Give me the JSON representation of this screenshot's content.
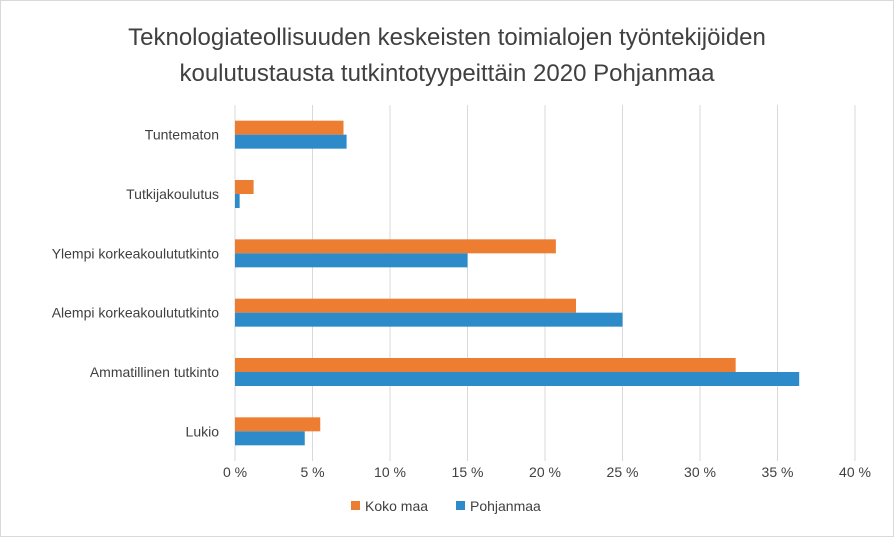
{
  "chart_data": {
    "type": "bar",
    "orientation": "horizontal",
    "title": [
      "Teknologiateollisuuden keskeisten toimialojen työntekijöiden",
      "koulutustausta tutkintotyypeittäin 2020 Pohjanmaa"
    ],
    "categories": [
      "Tuntematon",
      "Tutkijakoulutus",
      "Ylempi korkeakoulututkinto",
      "Alempi korkeakoulututkinto",
      "Ammatillinen tutkinto",
      "Lukio"
    ],
    "series": [
      {
        "name": "Koko maa",
        "color": "#ed7d31",
        "values": [
          7.0,
          1.2,
          20.7,
          22.0,
          32.3,
          5.5
        ]
      },
      {
        "name": "Pohjanmaa",
        "color": "#2e8bc9",
        "values": [
          7.2,
          0.3,
          15.0,
          25.0,
          36.4,
          4.5
        ]
      }
    ],
    "xlim": [
      0,
      40
    ],
    "xticks": [
      "0 %",
      "5 %",
      "10 %",
      "15 %",
      "20 %",
      "25 %",
      "30 %",
      "35 %",
      "40 %"
    ],
    "xlabel": "",
    "ylabel": "",
    "grid": true,
    "legend_position": "bottom"
  }
}
